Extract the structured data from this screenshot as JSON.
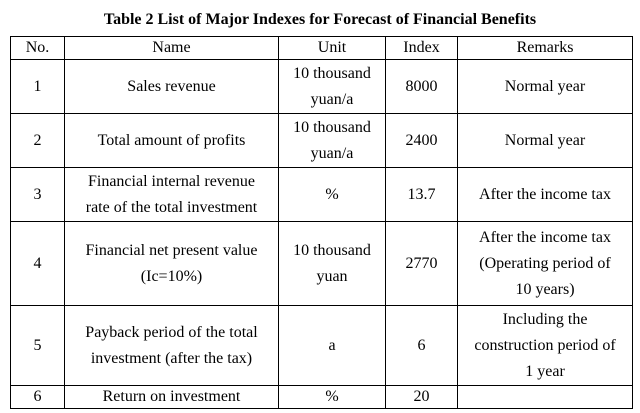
{
  "title": "Table 2 List of Major Indexes for Forecast of Financial Benefits",
  "headers": {
    "no": "No.",
    "name": "Name",
    "unit": "Unit",
    "index": "Index",
    "remarks": "Remarks"
  },
  "rows": [
    {
      "no": "1",
      "name": [
        "Sales revenue"
      ],
      "unit": [
        "10 thousand",
        "yuan/a"
      ],
      "index": "8000",
      "remarks": [
        "Normal year"
      ]
    },
    {
      "no": "2",
      "name": [
        "Total amount of profits"
      ],
      "unit": [
        "10 thousand",
        "yuan/a"
      ],
      "index": "2400",
      "remarks": [
        "Normal year"
      ]
    },
    {
      "no": "3",
      "name": [
        "Financial internal revenue",
        "rate of the total investment"
      ],
      "unit": [
        "%"
      ],
      "index": "13.7",
      "remarks": [
        "After the income tax"
      ]
    },
    {
      "no": "4",
      "name": [
        "Financial net present value",
        "(Ic=10%)"
      ],
      "unit": [
        "10 thousand",
        "yuan"
      ],
      "index": "2770",
      "remarks": [
        "After the income tax",
        "(Operating period of",
        "10 years)"
      ]
    },
    {
      "no": "5",
      "name": [
        "Payback period of the total",
        "investment (after the tax)"
      ],
      "unit": [
        "a"
      ],
      "index": "6",
      "remarks": [
        "Including the",
        "construction period of",
        "1 year"
      ]
    },
    {
      "no": "6",
      "name": [
        "Return on investment"
      ],
      "unit": [
        "%"
      ],
      "index": "20",
      "remarks": [
        ""
      ]
    }
  ]
}
